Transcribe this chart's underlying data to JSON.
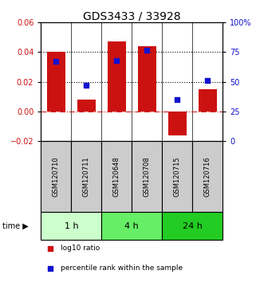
{
  "title": "GDS3433 / 33928",
  "samples": [
    "GSM120710",
    "GSM120711",
    "GSM120648",
    "GSM120708",
    "GSM120715",
    "GSM120716"
  ],
  "log10_ratio": [
    0.04,
    0.008,
    0.047,
    0.044,
    -0.016,
    0.015
  ],
  "percentile_rank": [
    67,
    47,
    68,
    77,
    35,
    51
  ],
  "ylim_left": [
    -0.02,
    0.06
  ],
  "ylim_right": [
    0,
    100
  ],
  "yticks_left": [
    -0.02,
    0,
    0.02,
    0.04,
    0.06
  ],
  "yticks_right": [
    0,
    25,
    50,
    75,
    100
  ],
  "bar_color": "#cc1111",
  "marker_color": "#1111cc",
  "hline_dotted_vals": [
    0.02,
    0.04
  ],
  "hline_zero_color": "#cc2222",
  "sample_box_color": "#cccccc",
  "time_groups": [
    {
      "label": "1 h",
      "color": "#ccffcc",
      "start": 0,
      "end": 1
    },
    {
      "label": "4 h",
      "color": "#66ee66",
      "start": 2,
      "end": 3
    },
    {
      "label": "24 h",
      "color": "#22cc22",
      "start": 4,
      "end": 5
    }
  ],
  "legend_items": [
    {
      "label": "log10 ratio",
      "color": "#cc1111"
    },
    {
      "label": "percentile rank within the sample",
      "color": "#1111cc"
    }
  ],
  "title_fontsize": 10,
  "tick_fontsize": 7,
  "label_fontsize": 6,
  "bar_width": 0.6
}
